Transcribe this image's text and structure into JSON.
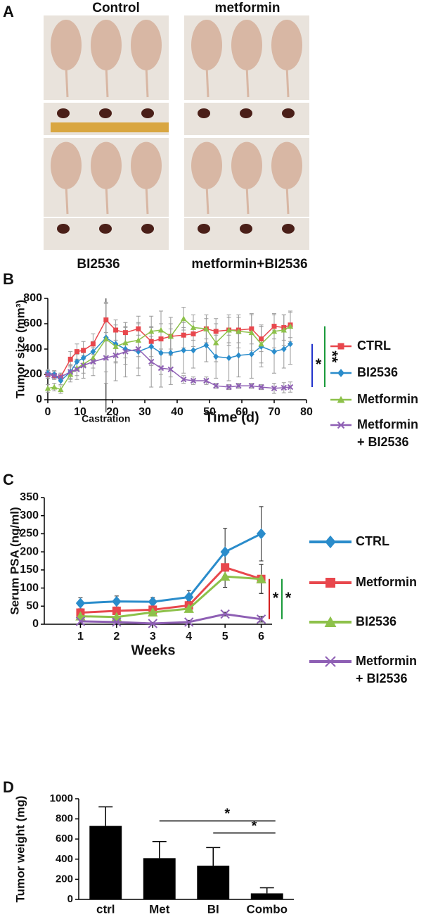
{
  "panel_a": {
    "label": "A",
    "groups": [
      "Control",
      "metformin",
      "BI2536",
      "metformin+BI2536"
    ]
  },
  "chart_data": [
    {
      "type": "line",
      "panel": "B",
      "ylabel": "Tumor size (mm³)",
      "xlabel": "Time (d)",
      "x": [
        0,
        2,
        4,
        7,
        9,
        11,
        14,
        18,
        21,
        24,
        28,
        32,
        35,
        38,
        42,
        45,
        49,
        52,
        56,
        59,
        63,
        66,
        70,
        73,
        75
      ],
      "xlim": [
        0,
        80
      ],
      "xticks": [
        0,
        10,
        20,
        30,
        40,
        50,
        60,
        70,
        80
      ],
      "ylim": [
        0,
        800
      ],
      "yticks": [
        0,
        200,
        400,
        600,
        800
      ],
      "series": [
        {
          "name": "CTRL",
          "color": "#e8474d",
          "marker": "square",
          "values": [
            200,
            190,
            180,
            320,
            380,
            390,
            440,
            630,
            550,
            530,
            560,
            460,
            480,
            500,
            510,
            520,
            560,
            540,
            550,
            550,
            560,
            480,
            580,
            570,
            590
          ],
          "errors": [
            30,
            30,
            30,
            60,
            60,
            70,
            80,
            140,
            80,
            80,
            100,
            120,
            120,
            100,
            100,
            100,
            80,
            100,
            100,
            100,
            120,
            100,
            100,
            100,
            100
          ]
        },
        {
          "name": "BI2536",
          "color": "#2a8ccb",
          "marker": "diamond",
          "values": [
            210,
            200,
            150,
            220,
            300,
            330,
            380,
            490,
            440,
            400,
            380,
            420,
            370,
            370,
            390,
            390,
            430,
            340,
            330,
            350,
            360,
            420,
            380,
            400,
            440
          ],
          "errors": [
            30,
            30,
            30,
            50,
            60,
            70,
            80,
            270,
            150,
            120,
            130,
            150,
            170,
            190,
            180,
            140,
            130,
            170,
            180,
            170,
            190,
            160,
            170,
            150,
            160
          ]
        },
        {
          "name": "Metformin",
          "color": "#8dc14a",
          "marker": "triangle",
          "values": [
            90,
            100,
            80,
            200,
            250,
            280,
            330,
            480,
            420,
            450,
            470,
            540,
            550,
            500,
            640,
            570,
            560,
            450,
            550,
            540,
            530,
            440,
            540,
            550,
            580
          ],
          "errors": [
            30,
            30,
            30,
            60,
            60,
            70,
            80,
            150,
            120,
            120,
            130,
            120,
            150,
            150,
            90,
            100,
            110,
            150,
            120,
            130,
            140,
            150,
            130,
            120,
            120
          ]
        },
        {
          "name": "Metformin + BI2536",
          "color": "#8e5fb4",
          "marker": "x",
          "values": [
            200,
            190,
            180,
            220,
            240,
            270,
            300,
            330,
            350,
            380,
            400,
            300,
            250,
            240,
            160,
            150,
            150,
            110,
            100,
            110,
            110,
            100,
            90,
            95,
            100
          ],
          "errors": [
            30,
            30,
            30,
            60,
            80,
            100,
            110,
            200,
            200,
            200,
            210,
            200,
            150,
            120,
            30,
            30,
            30,
            20,
            20,
            20,
            20,
            20,
            40,
            40,
            40
          ]
        }
      ],
      "annotations": [
        {
          "text": "Castration",
          "x": 18
        }
      ],
      "significance": [
        {
          "text": "*",
          "color": "#2233cc"
        },
        {
          "text": "**",
          "color": "#1a9a3a"
        }
      ]
    },
    {
      "type": "line",
      "panel": "C",
      "ylabel": "Serum PSA (ng/ml)",
      "xlabel": "Weeks",
      "x": [
        1,
        2,
        3,
        4,
        5,
        6
      ],
      "xlim": [
        0,
        6.3
      ],
      "xticks": [
        1,
        2,
        3,
        4,
        5,
        6
      ],
      "ylim": [
        0,
        350
      ],
      "yticks": [
        0,
        50,
        100,
        150,
        200,
        250,
        300,
        350
      ],
      "series": [
        {
          "name": "CTRL",
          "color": "#2a8ccb",
          "marker": "diamond",
          "values": [
            58,
            63,
            62,
            75,
            200,
            250
          ],
          "errors": [
            15,
            15,
            12,
            18,
            65,
            75
          ]
        },
        {
          "name": "Metformin",
          "color": "#e8474d",
          "marker": "square",
          "values": [
            32,
            37,
            40,
            52,
            157,
            125
          ],
          "errors": [
            10,
            10,
            10,
            12,
            35,
            40
          ]
        },
        {
          "name": "BI2536",
          "color": "#8dc14a",
          "marker": "triangle",
          "values": [
            22,
            20,
            33,
            43,
            132,
            125
          ],
          "errors": [
            8,
            8,
            8,
            10,
            30,
            40
          ]
        },
        {
          "name": "Metformin + BI2536",
          "color": "#8e5fb4",
          "marker": "x",
          "values": [
            8,
            6,
            2,
            6,
            28,
            14
          ],
          "errors": [
            5,
            5,
            3,
            5,
            5,
            8
          ]
        }
      ],
      "significance": [
        {
          "text": "*",
          "color": "#d42020"
        },
        {
          "text": "*",
          "color": "#1a9a3a"
        }
      ]
    },
    {
      "type": "bar",
      "panel": "D",
      "ylabel": "Tumor weight (mg)",
      "categories": [
        "ctrl",
        "Met",
        "BI",
        "Combo"
      ],
      "values": [
        730,
        410,
        335,
        60
      ],
      "errors": [
        190,
        165,
        180,
        55
      ],
      "color": "#000000",
      "ylim": [
        0,
        1000
      ],
      "yticks": [
        0,
        200,
        400,
        600,
        800,
        1000
      ],
      "significance": [
        {
          "text": "*"
        },
        {
          "text": "*"
        }
      ]
    }
  ]
}
